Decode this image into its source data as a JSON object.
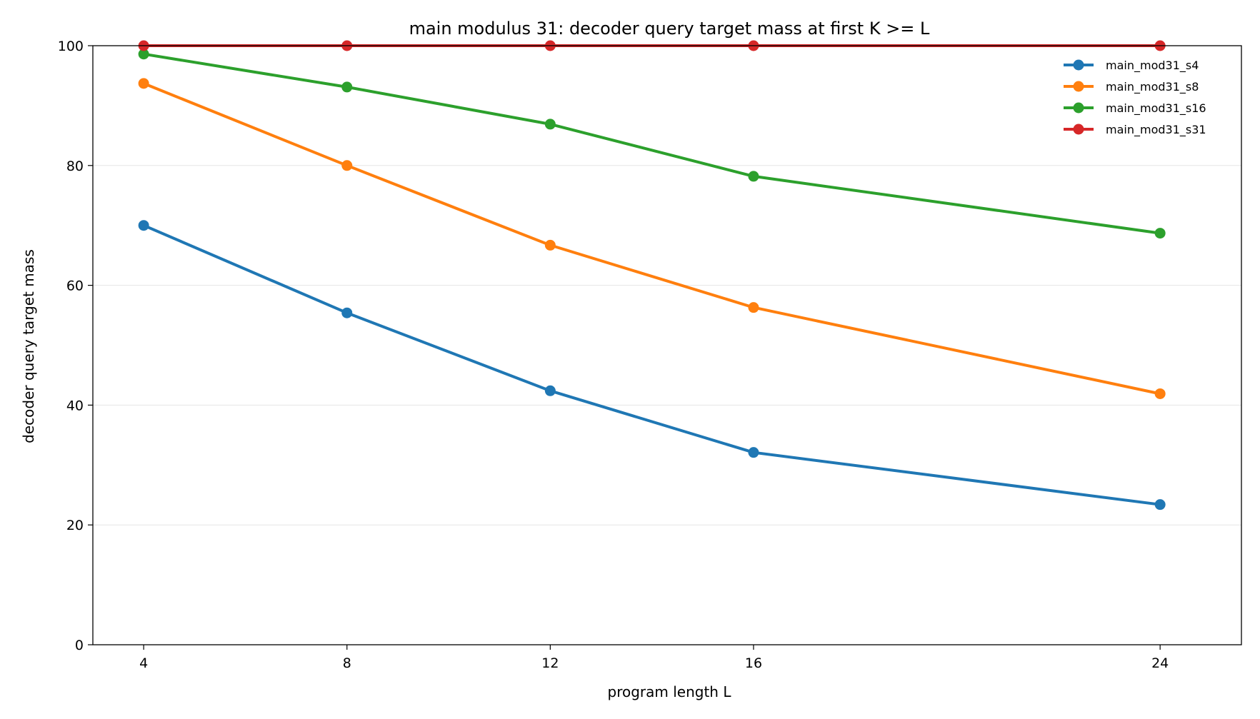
{
  "chart_data": {
    "type": "line",
    "title": "main modulus 31: decoder query target mass at first K >= L",
    "xlabel": "program length L",
    "ylabel": "decoder query target mass",
    "x": [
      4,
      8,
      12,
      16,
      24
    ],
    "xticks": [
      "4",
      "8",
      "12",
      "16",
      "24"
    ],
    "xlim": [
      3,
      25.6
    ],
    "ylim": [
      0,
      100
    ],
    "yticks": [
      "0",
      "20",
      "40",
      "60",
      "80",
      "100"
    ],
    "grid": "horizontal",
    "legend_position": "top-right",
    "series": [
      {
        "name": "main_mod31_s4",
        "color": "#1f77b4",
        "values": [
          70.0,
          55.4,
          42.4,
          32.1,
          23.4
        ]
      },
      {
        "name": "main_mod31_s8",
        "color": "#ff7f0e",
        "values": [
          93.7,
          80.0,
          66.7,
          56.3,
          41.9
        ]
      },
      {
        "name": "main_mod31_s16",
        "color": "#2ca02c",
        "values": [
          98.6,
          93.1,
          86.9,
          78.2,
          68.7
        ]
      },
      {
        "name": "main_mod31_s31",
        "color": "#d62728",
        "values": [
          100.0,
          100.0,
          100.0,
          100.0,
          100.0
        ]
      }
    ]
  }
}
